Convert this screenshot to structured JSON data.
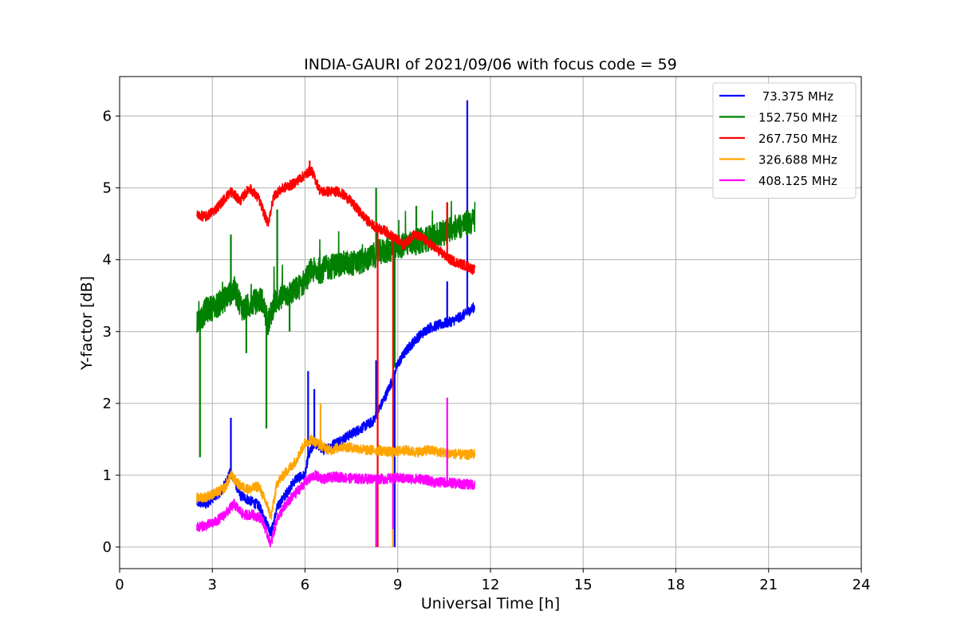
{
  "chart_data": {
    "type": "line",
    "title": "INDIA-GAURI of 2021/09/06 with focus code = 59",
    "xlabel": "Universal Time [h]",
    "ylabel": "Y-factor [dB]",
    "xlim": [
      0,
      24
    ],
    "ylim": [
      -0.3,
      6.55
    ],
    "xticks": [
      0,
      3,
      6,
      9,
      12,
      15,
      18,
      21,
      24
    ],
    "yticks": [
      0,
      1,
      2,
      3,
      4,
      5,
      6
    ],
    "grid": true,
    "legend_position": "top-right",
    "series": [
      {
        "name": " 73.375 MHz",
        "color": "#0000ff",
        "x": [
          2.5,
          2.8,
          3.0,
          3.3,
          3.6,
          3.9,
          4.2,
          4.5,
          4.8,
          4.9,
          5.1,
          5.4,
          5.7,
          6.0,
          6.1,
          6.3,
          6.6,
          7.0,
          7.4,
          7.8,
          8.2,
          8.6,
          8.8,
          9.0,
          9.3,
          9.6,
          10.0,
          10.4,
          10.8,
          11.2,
          11.5
        ],
        "y": [
          0.62,
          0.6,
          0.68,
          0.78,
          1.05,
          0.72,
          0.65,
          0.58,
          0.3,
          0.2,
          0.55,
          0.75,
          0.95,
          1.0,
          1.25,
          1.45,
          1.35,
          1.45,
          1.55,
          1.65,
          1.75,
          2.1,
          2.3,
          2.55,
          2.75,
          2.9,
          3.05,
          3.1,
          3.15,
          3.25,
          3.35
        ],
        "spikes": [
          [
            3.6,
            1.8
          ],
          [
            6.1,
            2.45
          ],
          [
            6.3,
            2.2
          ],
          [
            8.3,
            2.6
          ],
          [
            10.6,
            3.7
          ],
          [
            11.25,
            6.22
          ],
          [
            8.9,
            0.0
          ]
        ]
      },
      {
        "name": "152.750 MHz",
        "color": "#008000",
        "x": [
          2.5,
          2.8,
          3.1,
          3.4,
          3.7,
          4.0,
          4.3,
          4.6,
          4.8,
          5.0,
          5.3,
          5.6,
          5.9,
          6.2,
          6.5,
          6.8,
          7.2,
          7.6,
          8.0,
          8.4,
          8.8,
          9.2,
          9.6,
          10.0,
          10.4,
          10.8,
          11.2,
          11.5
        ],
        "y": [
          3.1,
          3.3,
          3.35,
          3.45,
          3.6,
          3.3,
          3.4,
          3.45,
          3.1,
          3.4,
          3.5,
          3.55,
          3.65,
          3.85,
          3.85,
          3.9,
          3.95,
          3.95,
          4.0,
          4.1,
          4.15,
          4.2,
          4.25,
          4.3,
          4.35,
          4.45,
          4.5,
          4.55
        ],
        "spikes": [
          [
            2.6,
            1.25
          ],
          [
            3.6,
            4.35
          ],
          [
            4.1,
            2.7
          ],
          [
            4.75,
            1.65
          ],
          [
            5.1,
            4.7
          ],
          [
            5.5,
            3.0
          ],
          [
            8.3,
            5.0
          ],
          [
            9.6,
            4.75
          ],
          [
            10.6,
            4.8
          ],
          [
            8.9,
            2.5
          ]
        ]
      },
      {
        "name": "267.750 MHz",
        "color": "#ff0000",
        "x": [
          2.5,
          2.8,
          3.1,
          3.4,
          3.6,
          3.9,
          4.2,
          4.5,
          4.8,
          5.0,
          5.3,
          5.6,
          5.9,
          6.2,
          6.5,
          6.8,
          7.1,
          7.4,
          7.7,
          8.0,
          8.3,
          8.6,
          8.9,
          9.2,
          9.5,
          9.8,
          10.1,
          10.4,
          10.7,
          11.0,
          11.3,
          11.5
        ],
        "y": [
          4.62,
          4.6,
          4.7,
          4.85,
          4.95,
          4.82,
          5.0,
          4.85,
          4.5,
          4.9,
          5.0,
          5.05,
          5.15,
          5.25,
          4.95,
          4.95,
          4.95,
          4.85,
          4.7,
          4.55,
          4.45,
          4.4,
          4.3,
          4.2,
          4.35,
          4.3,
          4.2,
          4.1,
          4.0,
          3.95,
          3.9,
          3.85
        ],
        "spikes": [
          [
            6.15,
            5.38
          ],
          [
            8.35,
            0.0
          ],
          [
            8.85,
            0.0
          ],
          [
            10.6,
            4.8
          ]
        ]
      },
      {
        "name": "326.688 MHz",
        "color": "#ffa500",
        "x": [
          2.5,
          2.8,
          3.1,
          3.4,
          3.6,
          3.9,
          4.2,
          4.5,
          4.8,
          4.9,
          5.1,
          5.4,
          5.7,
          6.0,
          6.2,
          6.5,
          6.8,
          7.2,
          7.6,
          8.0,
          8.4,
          8.8,
          9.2,
          9.6,
          10.0,
          10.4,
          10.8,
          11.2,
          11.5
        ],
        "y": [
          0.68,
          0.7,
          0.75,
          0.82,
          1.0,
          0.85,
          0.8,
          0.85,
          0.55,
          0.42,
          0.9,
          1.05,
          1.2,
          1.45,
          1.5,
          1.42,
          1.35,
          1.4,
          1.38,
          1.35,
          1.35,
          1.32,
          1.35,
          1.32,
          1.35,
          1.32,
          1.3,
          1.28,
          1.3
        ],
        "spikes": [
          [
            6.5,
            2.0
          ],
          [
            8.85,
            0.0
          ]
        ]
      },
      {
        "name": "408.125 MHz",
        "color": "#ff00ff",
        "x": [
          2.5,
          2.8,
          3.1,
          3.4,
          3.7,
          4.0,
          4.3,
          4.6,
          4.8,
          4.9,
          5.1,
          5.4,
          5.7,
          6.0,
          6.3,
          6.6,
          7.0,
          7.4,
          7.8,
          8.2,
          8.6,
          9.0,
          9.4,
          9.8,
          10.2,
          10.6,
          11.0,
          11.5
        ],
        "y": [
          0.28,
          0.3,
          0.35,
          0.45,
          0.6,
          0.45,
          0.45,
          0.4,
          0.15,
          0.05,
          0.4,
          0.6,
          0.75,
          0.9,
          1.0,
          0.95,
          0.98,
          0.96,
          0.95,
          0.95,
          0.95,
          0.96,
          0.95,
          0.95,
          0.9,
          0.9,
          0.88,
          0.87
        ],
        "spikes": [
          [
            8.3,
            0.0
          ],
          [
            8.85,
            0.25
          ],
          [
            10.6,
            2.08
          ]
        ]
      }
    ]
  }
}
